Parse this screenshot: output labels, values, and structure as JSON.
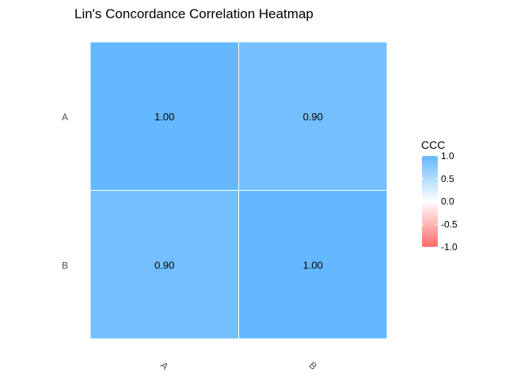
{
  "chart_data": {
    "type": "heatmap",
    "title": "Lin's Concordance Correlation Heatmap",
    "x_categories": [
      "A",
      "B"
    ],
    "y_categories": [
      "A",
      "B"
    ],
    "values": [
      [
        1.0,
        0.9
      ],
      [
        0.9,
        1.0
      ]
    ],
    "cell_labels": [
      [
        "1.00",
        "0.90"
      ],
      [
        "0.90",
        "1.00"
      ]
    ],
    "legend": {
      "title": "CCC",
      "range": [
        -1,
        1
      ],
      "ticks": [
        1.0,
        0.5,
        0.0,
        -0.5,
        -1.0
      ],
      "tick_labels": [
        "1.0",
        "0.5",
        "0.0",
        "-0.5",
        "-1.0"
      ],
      "placement": "right"
    },
    "colors": {
      "low": "#FF6A6A",
      "mid": "#FFFFFF",
      "high": "#63B8FF"
    },
    "grid": false
  }
}
